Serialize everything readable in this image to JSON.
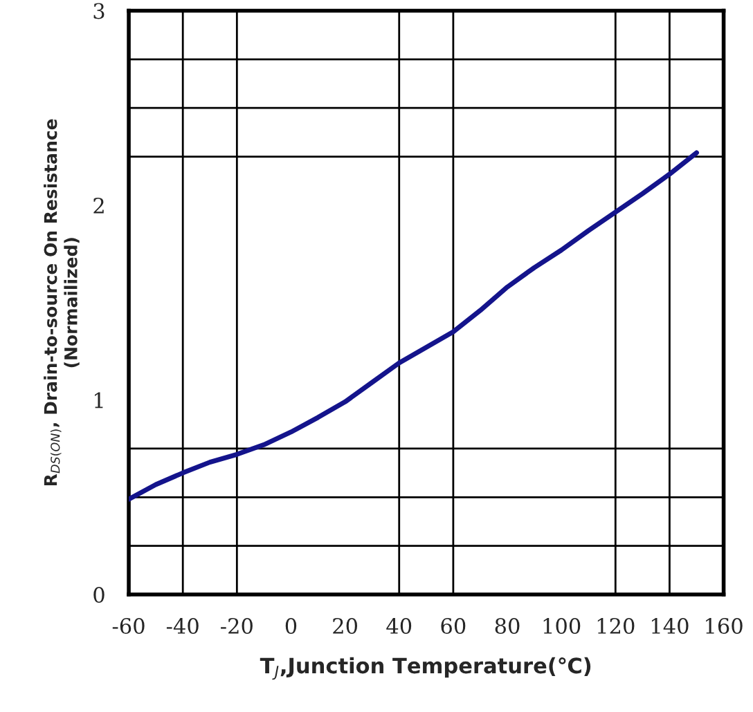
{
  "chart_data": {
    "type": "line",
    "xlabel": "T$_{J}$,Junction Temperature(℃)",
    "ylabel": "R$_{DS(ON)}$, Drain-to-source On Resistance\n(Normailized)",
    "x": [
      -60,
      -50,
      -40,
      -30,
      -20,
      -10,
      0,
      10,
      20,
      30,
      40,
      50,
      60,
      70,
      80,
      90,
      100,
      110,
      120,
      130,
      140,
      150
    ],
    "series": [
      {
        "color": "#14148c",
        "values": [
          0.49,
          0.565,
          0.625,
          0.68,
          0.72,
          0.77,
          0.835,
          0.91,
          0.99,
          1.09,
          1.19,
          1.27,
          1.35,
          1.46,
          1.58,
          1.68,
          1.77,
          1.87,
          1.965,
          2.06,
          2.16,
          2.27
        ]
      }
    ],
    "xlim": [
      -60,
      160
    ],
    "ylim": [
      0,
      3
    ],
    "xticks": [
      -60,
      -40,
      -20,
      0,
      20,
      40,
      60,
      80,
      100,
      120,
      140,
      160
    ],
    "yticks": [
      0,
      1,
      2,
      3
    ],
    "ref_lines": [
      {
        "axis": "x",
        "value": -40,
        "color": "#000000"
      },
      {
        "axis": "x",
        "value": -20,
        "color": "#000000"
      },
      {
        "axis": "x",
        "value": 40,
        "color": "#000000"
      },
      {
        "axis": "x",
        "value": 60,
        "color": "#000000"
      },
      {
        "axis": "x",
        "value": 120,
        "color": "#000000"
      },
      {
        "axis": "x",
        "value": 140,
        "color": "#000000"
      },
      {
        "axis": "y",
        "value": 0.25,
        "color": "#000000"
      },
      {
        "axis": "y",
        "value": 0.5,
        "color": "#000000"
      },
      {
        "axis": "y",
        "value": 0.75,
        "color": "#000000"
      },
      {
        "axis": "y",
        "value": 2.25,
        "color": "#000000"
      },
      {
        "axis": "y",
        "value": 2.5,
        "color": "#000000"
      },
      {
        "axis": "y",
        "value": 2.75,
        "color": "#000000"
      }
    ],
    "grid": false,
    "marker": "none",
    "line_style": "solid"
  }
}
